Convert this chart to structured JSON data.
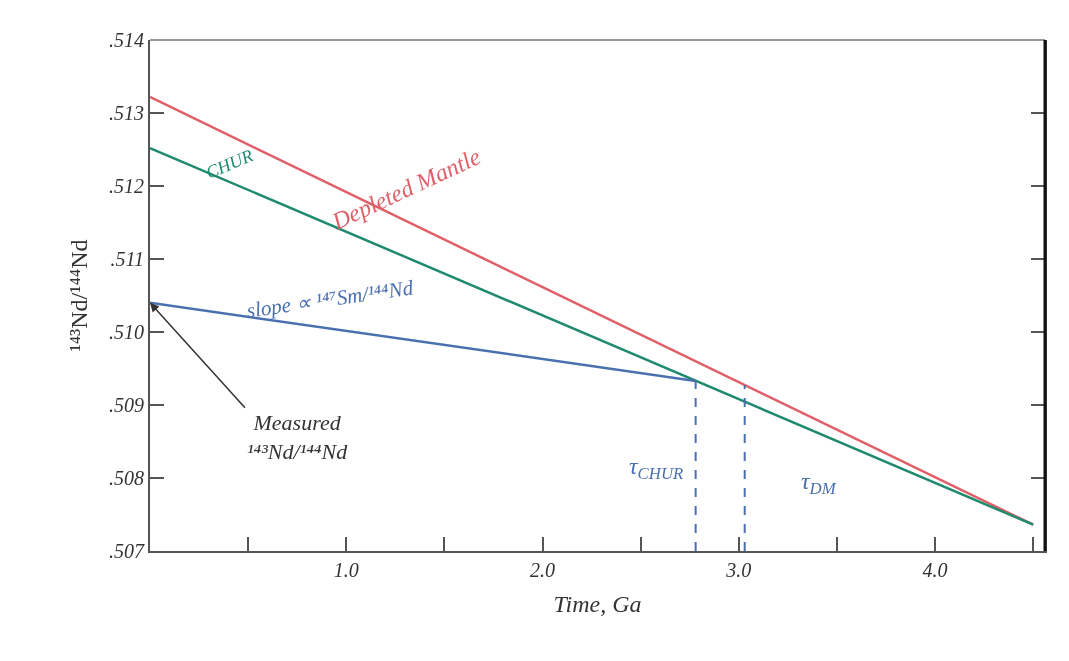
{
  "chart_data": {
    "type": "line",
    "xlabel": "Time, Ga",
    "ylabel": "¹⁴³Nd/¹⁴⁴Nd",
    "xlim": [
      0,
      4.56
    ],
    "ylim": [
      0.507,
      0.514
    ],
    "xticks": [
      {
        "value": 0.5,
        "label": null
      },
      {
        "value": 1.0,
        "label": "1.0"
      },
      {
        "value": 1.5,
        "label": null
      },
      {
        "value": 2.0,
        "label": "2.0"
      },
      {
        "value": 2.5,
        "label": null
      },
      {
        "value": 3.0,
        "label": "3.0"
      },
      {
        "value": 3.5,
        "label": null
      },
      {
        "value": 4.0,
        "label": "4.0"
      },
      {
        "value": 4.5,
        "label": null
      }
    ],
    "yticks": [
      {
        "value": 0.507,
        "label": ".507"
      },
      {
        "value": 0.508,
        "label": ".508"
      },
      {
        "value": 0.509,
        "label": ".509"
      },
      {
        "value": 0.51,
        "label": ".510"
      },
      {
        "value": 0.511,
        "label": ".511"
      },
      {
        "value": 0.512,
        "label": ".512"
      },
      {
        "value": 0.513,
        "label": ".513"
      },
      {
        "value": 0.514,
        "label": ".514"
      }
    ],
    "legend": false,
    "marker": "none",
    "series": [
      {
        "name": "Depleted Mantle",
        "color": "#e0606a",
        "x": [
          0,
          4.5
        ],
        "values": [
          0.51322,
          0.50736
        ],
        "line_style": "solid"
      },
      {
        "name": "CHUR",
        "color": "#1f8a6e",
        "x": [
          0,
          4.5
        ],
        "values": [
          0.51252,
          0.50736
        ],
        "line_style": "solid"
      },
      {
        "name": "slope ∝ ¹⁴⁷Sm/¹⁴⁴Nd",
        "color": "#4a70b0",
        "x": [
          0,
          2.78
        ],
        "values": [
          0.5104,
          0.50933
        ],
        "line_style": "solid"
      },
      {
        "color": "#4a70b0",
        "x": [
          2.78,
          2.78
        ],
        "values": [
          0.507,
          0.50933
        ],
        "line_style": "dashed"
      },
      {
        "color": "#4a70b0",
        "x": [
          3.03,
          3.03
        ],
        "values": [
          0.507,
          0.50927
        ],
        "line_style": "dashed"
      }
    ],
    "annotations": [
      {
        "text": "Measured\n¹⁴³Nd/¹⁴⁴Nd",
        "x": 0,
        "y": 0.5104
      },
      "τ$_{CHUR}$",
      "τ$_{DM}$"
    ]
  }
}
